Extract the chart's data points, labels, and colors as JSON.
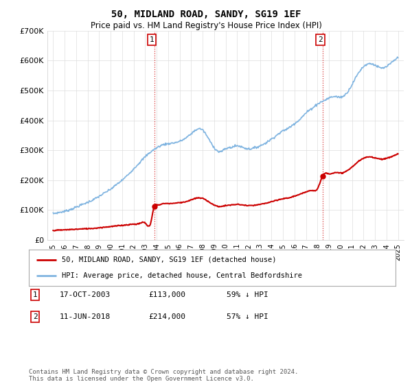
{
  "title": "50, MIDLAND ROAD, SANDY, SG19 1EF",
  "subtitle": "Price paid vs. HM Land Registry's House Price Index (HPI)",
  "ylim": [
    0,
    700000
  ],
  "yticks": [
    0,
    100000,
    200000,
    300000,
    400000,
    500000,
    600000,
    700000
  ],
  "ytick_labels": [
    "£0",
    "£100K",
    "£200K",
    "£300K",
    "£400K",
    "£500K",
    "£600K",
    "£700K"
  ],
  "hpi_color": "#7EB3E0",
  "price_color": "#CC0000",
  "ann1_x": 2003.79,
  "ann1_y": 113000,
  "ann1_date": "17-OCT-2003",
  "ann1_price": "£113,000",
  "ann1_pct": "59% ↓ HPI",
  "ann2_x": 2018.44,
  "ann2_y": 214000,
  "ann2_date": "11-JUN-2018",
  "ann2_price": "£214,000",
  "ann2_pct": "57% ↓ HPI",
  "legend1": "50, MIDLAND ROAD, SANDY, SG19 1EF (detached house)",
  "legend2": "HPI: Average price, detached house, Central Bedfordshire",
  "footer": "Contains HM Land Registry data © Crown copyright and database right 2024.\nThis data is licensed under the Open Government Licence v3.0.",
  "xmin": 1995,
  "xmax": 2025,
  "background_color": "#ffffff",
  "hpi_data_x": [
    1995.0,
    1995.5,
    1996.0,
    1996.5,
    1997.0,
    1997.5,
    1998.0,
    1998.5,
    1999.0,
    1999.5,
    2000.0,
    2000.5,
    2001.0,
    2001.5,
    2002.0,
    2002.5,
    2003.0,
    2003.5,
    2004.0,
    2004.5,
    2005.0,
    2005.5,
    2006.0,
    2006.5,
    2007.0,
    2007.5,
    2008.0,
    2008.5,
    2009.0,
    2009.5,
    2010.0,
    2010.5,
    2011.0,
    2011.5,
    2012.0,
    2012.5,
    2013.0,
    2013.5,
    2014.0,
    2014.5,
    2015.0,
    2015.5,
    2016.0,
    2016.5,
    2017.0,
    2017.5,
    2018.0,
    2018.5,
    2019.0,
    2019.5,
    2020.0,
    2020.5,
    2021.0,
    2021.5,
    2022.0,
    2022.5,
    2023.0,
    2023.5,
    2024.0,
    2024.5,
    2025.0
  ],
  "hpi_data_y": [
    88000,
    92000,
    96000,
    102000,
    110000,
    118000,
    126000,
    135000,
    146000,
    158000,
    170000,
    185000,
    200000,
    218000,
    238000,
    258000,
    278000,
    295000,
    308000,
    318000,
    322000,
    325000,
    330000,
    340000,
    355000,
    370000,
    368000,
    340000,
    310000,
    295000,
    305000,
    310000,
    315000,
    310000,
    305000,
    308000,
    315000,
    325000,
    338000,
    352000,
    365000,
    375000,
    390000,
    405000,
    425000,
    440000,
    455000,
    465000,
    475000,
    480000,
    478000,
    490000,
    520000,
    555000,
    580000,
    590000,
    585000,
    575000,
    580000,
    595000,
    610000
  ],
  "price_data_x": [
    1995.0,
    1995.5,
    1996.0,
    1996.5,
    1997.0,
    1997.5,
    1998.0,
    1998.5,
    1999.0,
    1999.5,
    2000.0,
    2000.5,
    2001.0,
    2001.5,
    2002.0,
    2002.5,
    2003.0,
    2003.5,
    2003.79,
    2004.0,
    2004.5,
    2005.0,
    2005.5,
    2006.0,
    2006.5,
    2007.0,
    2007.5,
    2008.0,
    2008.5,
    2009.0,
    2009.5,
    2010.0,
    2010.5,
    2011.0,
    2011.5,
    2012.0,
    2012.5,
    2013.0,
    2013.5,
    2014.0,
    2014.5,
    2015.0,
    2015.5,
    2016.0,
    2016.5,
    2017.0,
    2017.5,
    2018.0,
    2018.44,
    2018.5,
    2019.0,
    2019.5,
    2020.0,
    2020.5,
    2021.0,
    2021.5,
    2022.0,
    2022.5,
    2023.0,
    2023.5,
    2024.0,
    2024.5,
    2025.0
  ],
  "price_data_y": [
    32000,
    33000,
    34000,
    35000,
    36000,
    37000,
    38000,
    39000,
    41000,
    43000,
    45000,
    47000,
    49000,
    51000,
    53000,
    55000,
    57000,
    59000,
    113000,
    118000,
    121000,
    122000,
    123000,
    125000,
    128000,
    134000,
    140000,
    139000,
    129000,
    117000,
    112000,
    115000,
    117000,
    119000,
    117000,
    115000,
    116000,
    119000,
    123000,
    128000,
    133000,
    138000,
    141000,
    147000,
    153000,
    161000,
    166000,
    172000,
    214000,
    218000,
    222000,
    225000,
    224000,
    230000,
    244000,
    261000,
    273000,
    278000,
    275000,
    271000,
    273000,
    280000,
    288000
  ]
}
